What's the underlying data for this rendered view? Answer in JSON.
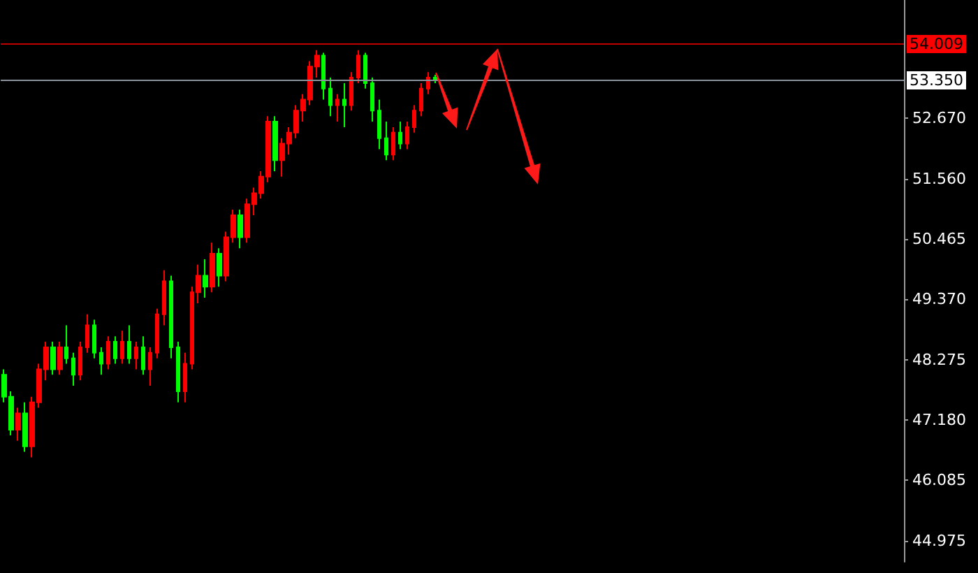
{
  "chart_data": {
    "type": "candlestick",
    "categories": [
      null,
      null,
      null,
      null,
      null,
      null,
      null,
      null,
      null,
      null,
      null,
      null,
      null,
      null,
      null,
      null,
      null,
      null,
      null,
      null,
      null,
      null,
      null,
      null,
      null,
      null,
      null,
      null,
      null,
      null,
      null,
      null,
      null,
      null,
      null,
      null,
      null,
      null,
      null,
      null,
      null,
      null,
      null,
      null,
      null,
      null,
      null,
      null,
      null,
      null,
      null,
      null,
      null,
      null,
      null,
      null,
      null,
      null,
      null,
      null,
      null,
      null,
      null,
      null,
      null,
      null,
      null,
      null,
      null,
      null,
      null,
      null,
      null,
      null,
      null,
      null,
      null,
      null,
      null,
      null,
      null,
      null,
      null,
      null,
      null,
      null,
      null,
      null,
      null,
      null,
      null,
      null,
      null,
      null,
      null,
      null,
      null,
      null,
      null,
      null,
      null,
      null,
      null,
      null,
      null,
      null,
      null,
      null,
      null,
      null,
      null,
      null,
      null,
      null,
      null,
      null,
      null,
      null,
      null,
      null,
      null,
      null,
      null,
      null,
      null,
      null,
      null,
      null,
      null,
      null
    ],
    "ohlc": [
      [
        48.0,
        48.1,
        47.5,
        47.6
      ],
      [
        47.6,
        47.7,
        46.9,
        47.0
      ],
      [
        47.0,
        47.4,
        46.8,
        47.3
      ],
      [
        47.3,
        47.5,
        46.6,
        46.7
      ],
      [
        46.7,
        47.6,
        46.5,
        47.5
      ],
      [
        47.5,
        48.2,
        47.4,
        48.1
      ],
      [
        48.1,
        48.6,
        47.9,
        48.5
      ],
      [
        48.5,
        48.6,
        48.0,
        48.1
      ],
      [
        48.1,
        48.6,
        48.0,
        48.5
      ],
      [
        48.5,
        48.9,
        48.2,
        48.3
      ],
      [
        48.3,
        48.4,
        47.8,
        48.0
      ],
      [
        48.0,
        48.6,
        47.9,
        48.5
      ],
      [
        48.5,
        49.1,
        48.4,
        48.9
      ],
      [
        48.9,
        49.0,
        48.3,
        48.4
      ],
      [
        48.4,
        48.5,
        48.0,
        48.2
      ],
      [
        48.2,
        48.7,
        48.1,
        48.6
      ],
      [
        48.6,
        48.7,
        48.2,
        48.3
      ],
      [
        48.3,
        48.8,
        48.2,
        48.6
      ],
      [
        48.6,
        48.9,
        48.2,
        48.3
      ],
      [
        48.3,
        48.6,
        48.1,
        48.5
      ],
      [
        48.5,
        48.7,
        48.0,
        48.1
      ],
      [
        48.1,
        48.5,
        47.8,
        48.4
      ],
      [
        48.4,
        49.2,
        48.3,
        49.1
      ],
      [
        49.1,
        49.9,
        48.9,
        49.7
      ],
      [
        49.7,
        49.8,
        48.3,
        48.5
      ],
      [
        48.5,
        48.6,
        47.5,
        47.7
      ],
      [
        47.7,
        48.4,
        47.5,
        48.2
      ],
      [
        48.2,
        49.6,
        48.1,
        49.5
      ],
      [
        49.5,
        50.0,
        49.3,
        49.8
      ],
      [
        49.8,
        50.1,
        49.4,
        49.6
      ],
      [
        49.6,
        50.4,
        49.5,
        50.2
      ],
      [
        50.2,
        50.3,
        49.6,
        49.8
      ],
      [
        49.8,
        50.6,
        49.7,
        50.5
      ],
      [
        50.5,
        51.0,
        50.4,
        50.9
      ],
      [
        50.9,
        51.0,
        50.3,
        50.5
      ],
      [
        50.5,
        51.2,
        50.4,
        51.1
      ],
      [
        51.1,
        51.4,
        50.9,
        51.3
      ],
      [
        51.3,
        51.7,
        51.2,
        51.6
      ],
      [
        51.6,
        52.7,
        51.5,
        52.6
      ],
      [
        52.6,
        52.7,
        51.7,
        51.9
      ],
      [
        51.9,
        52.3,
        51.6,
        52.2
      ],
      [
        52.2,
        52.5,
        52.0,
        52.4
      ],
      [
        52.4,
        52.9,
        52.3,
        52.8
      ],
      [
        52.8,
        53.1,
        52.6,
        53.0
      ],
      [
        53.0,
        53.7,
        52.9,
        53.6
      ],
      [
        53.6,
        53.9,
        53.4,
        53.8
      ],
      [
        53.8,
        53.85,
        53.0,
        53.2
      ],
      [
        53.2,
        53.4,
        52.7,
        52.9
      ],
      [
        52.9,
        53.1,
        52.6,
        53.0
      ],
      [
        53.0,
        53.3,
        52.5,
        52.9
      ],
      [
        52.9,
        53.5,
        52.8,
        53.4
      ],
      [
        53.4,
        53.9,
        53.3,
        53.8
      ],
      [
        53.8,
        53.85,
        53.2,
        53.3
      ],
      [
        53.3,
        53.4,
        52.6,
        52.8
      ],
      [
        52.8,
        53.0,
        52.1,
        52.3
      ],
      [
        52.3,
        52.6,
        51.9,
        52.0
      ],
      [
        52.0,
        52.5,
        51.9,
        52.4
      ],
      [
        52.4,
        52.6,
        52.1,
        52.2
      ],
      [
        52.2,
        52.6,
        52.1,
        52.5
      ],
      [
        52.5,
        52.9,
        52.4,
        52.8
      ],
      [
        52.8,
        53.3,
        52.7,
        53.2
      ],
      [
        53.2,
        53.5,
        53.1,
        53.4
      ],
      [
        53.4,
        53.45,
        53.3,
        53.35
      ],
      null,
      null,
      null,
      null,
      null,
      null,
      null,
      null,
      null,
      null,
      null,
      null,
      null,
      null,
      null,
      null,
      null,
      null,
      null,
      null,
      null,
      null,
      null,
      null,
      null,
      null,
      null,
      null,
      null,
      null,
      null,
      null,
      null,
      null,
      null,
      null,
      null,
      null,
      null,
      null,
      null,
      null,
      null,
      null,
      null,
      null,
      null,
      null,
      null,
      null,
      null,
      null,
      null,
      null,
      null,
      null,
      null,
      null,
      null,
      null,
      null,
      null,
      null,
      null,
      null,
      null,
      null
    ],
    "colors": [
      "#00ff00",
      "#00ff00",
      "#ff0000",
      "#00ff00",
      "#ff0000",
      "#ff0000",
      "#ff0000",
      "#00ff00",
      "#ff0000",
      "#00ff00",
      "#00ff00",
      "#ff0000",
      "#ff0000",
      "#00ff00",
      "#00ff00",
      "#ff0000",
      "#00ff00",
      "#ff0000",
      "#00ff00",
      "#ff0000",
      "#00ff00",
      "#ff0000",
      "#ff0000",
      "#ff0000",
      "#00ff00",
      "#00ff00",
      "#ff0000",
      "#ff0000",
      "#ff0000",
      "#00ff00",
      "#ff0000",
      "#00ff00",
      "#ff0000",
      "#ff0000",
      "#00ff00",
      "#ff0000",
      "#ff0000",
      "#ff0000",
      "#ff0000",
      "#00ff00",
      "#ff0000",
      "#ff0000",
      "#ff0000",
      "#ff0000",
      "#ff0000",
      "#ff0000",
      "#00ff00",
      "#00ff00",
      "#ff0000",
      "#00ff00",
      "#ff0000",
      "#ff0000",
      "#00ff00",
      "#00ff00",
      "#00ff00",
      "#00ff00",
      "#ff0000",
      "#00ff00",
      "#ff0000",
      "#ff0000",
      "#ff0000",
      "#ff0000",
      "#00ff00",
      null,
      null,
      null,
      null,
      null,
      null,
      null,
      null,
      null,
      null,
      null,
      null,
      null,
      null,
      null,
      null,
      null,
      null,
      null,
      null,
      null,
      null,
      null,
      null,
      null,
      null,
      null,
      null,
      null,
      null,
      null,
      null,
      null,
      null,
      null,
      null,
      null,
      null,
      null,
      null,
      null,
      null,
      null,
      null,
      null,
      null,
      null,
      null,
      null,
      null,
      null,
      null,
      null,
      null,
      null,
      null,
      null,
      null,
      null,
      null,
      null,
      null,
      null,
      null,
      null,
      null,
      null
    ],
    "ylim": [
      44.6,
      54.81
    ],
    "yticks": [
      44.975,
      46.085,
      {
        "value": 47.18,
        "label": "47.180"
      },
      48.275,
      {
        "value": 49.37,
        "label": "49.370"
      },
      50.465,
      {
        "value": 51.56,
        "label": "51.560"
      },
      {
        "value": 52.67,
        "label": "52.670"
      }
    ],
    "ref_lines": [
      {
        "axis": "y",
        "value": 54.009,
        "label": "54.009",
        "color": "#c00000"
      },
      {
        "axis": "y",
        "value": 53.35,
        "label": "53.350",
        "color": "#8a929c"
      }
    ],
    "grid": false
  }
}
